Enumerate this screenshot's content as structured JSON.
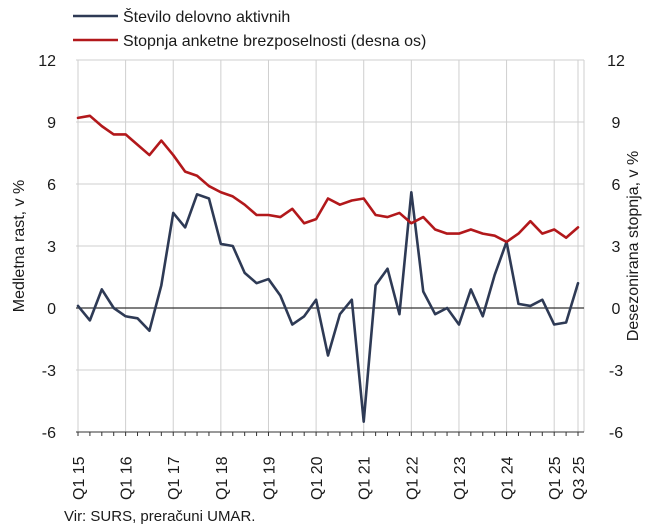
{
  "chart_data": {
    "type": "line",
    "title": "",
    "x": [
      "Q1 15",
      "Q2 15",
      "Q3 15",
      "Q4 15",
      "Q1 16",
      "Q2 16",
      "Q3 16",
      "Q4 16",
      "Q1 17",
      "Q2 17",
      "Q3 17",
      "Q4 17",
      "Q1 18",
      "Q2 18",
      "Q3 18",
      "Q4 18",
      "Q1 19",
      "Q2 19",
      "Q3 19",
      "Q4 19",
      "Q1 20",
      "Q2 20",
      "Q3 20",
      "Q4 20",
      "Q1 21",
      "Q2 21",
      "Q3 21",
      "Q4 21",
      "Q1 22",
      "Q2 22",
      "Q3 22",
      "Q4 22",
      "Q1 23",
      "Q2 23",
      "Q3 23",
      "Q4 23",
      "Q1 24",
      "Q2 24",
      "Q3 24",
      "Q4 24",
      "Q1 25",
      "Q2 25",
      "Q3 25"
    ],
    "x_tick_labels": [
      "Q1 15",
      "Q1 16",
      "Q1 17",
      "Q1 18",
      "Q1 19",
      "Q1 20",
      "Q1 21",
      "Q1 22",
      "Q1 23",
      "Q1 24",
      "Q1 25",
      "Q3 25"
    ],
    "series": [
      {
        "name": "Število delovno aktivnih",
        "axis": "left",
        "color": "#2e3a55",
        "values": [
          0.1,
          -0.6,
          0.9,
          0.0,
          -0.4,
          -0.5,
          -1.1,
          1.1,
          4.6,
          3.9,
          5.5,
          5.3,
          3.1,
          3.0,
          1.7,
          1.2,
          1.4,
          0.6,
          -0.8,
          -0.4,
          0.4,
          -2.3,
          -0.3,
          0.4,
          -5.5,
          1.1,
          1.9,
          -0.3,
          5.6,
          0.8,
          -0.3,
          0.0,
          -0.8,
          0.9,
          -0.4,
          1.6,
          3.2,
          0.2,
          0.1,
          0.4,
          -0.8,
          -0.7,
          1.2
        ]
      },
      {
        "name": "Stopnja anketne brezposelnosti (desna os)",
        "axis": "right",
        "color": "#b2181b",
        "values": [
          9.2,
          9.3,
          8.8,
          8.4,
          8.4,
          7.9,
          7.4,
          8.1,
          7.4,
          6.6,
          6.4,
          5.9,
          5.6,
          5.4,
          5.0,
          4.5,
          4.5,
          4.4,
          4.8,
          4.1,
          4.3,
          5.3,
          5.0,
          5.2,
          5.3,
          4.5,
          4.4,
          4.6,
          4.1,
          4.4,
          3.8,
          3.6,
          3.6,
          3.8,
          3.6,
          3.5,
          3.2,
          3.6,
          4.2,
          3.6,
          3.8,
          3.4,
          3.9
        ]
      }
    ],
    "ylabel": "Medletna rast, v %",
    "y2label": "Desezonirana stopnja, v %",
    "ylim": [
      -6,
      12
    ],
    "y2lim": [
      -6,
      12
    ],
    "yticks": [
      12,
      9,
      6,
      3,
      0,
      -3,
      -6
    ],
    "grid": true,
    "legend_position": "top-left",
    "source": "Vir: SURS, preračuni UMAR."
  }
}
